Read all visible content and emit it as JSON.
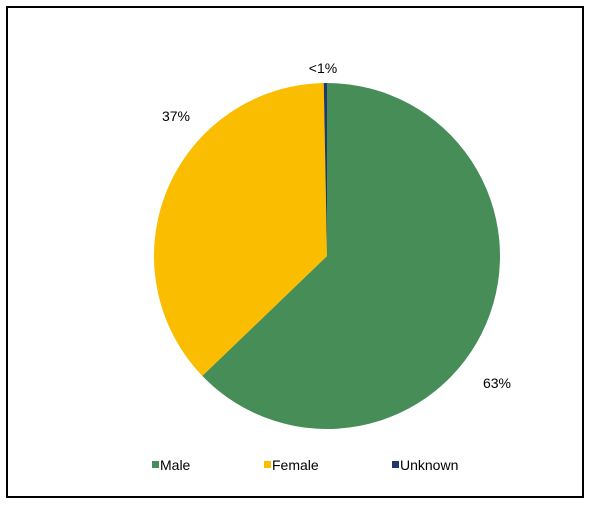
{
  "chart_data": {
    "type": "pie",
    "title": "",
    "categories": [
      "Male",
      "Female",
      "Unknown"
    ],
    "values": [
      63,
      37,
      0.3
    ],
    "data_labels": [
      "63%",
      "37%",
      "<1%"
    ],
    "colors": [
      "#468d57",
      "#fbbd00",
      "#1f3a68"
    ],
    "legend_position": "bottom",
    "start_angle_deg": 0,
    "direction": "clockwise"
  }
}
